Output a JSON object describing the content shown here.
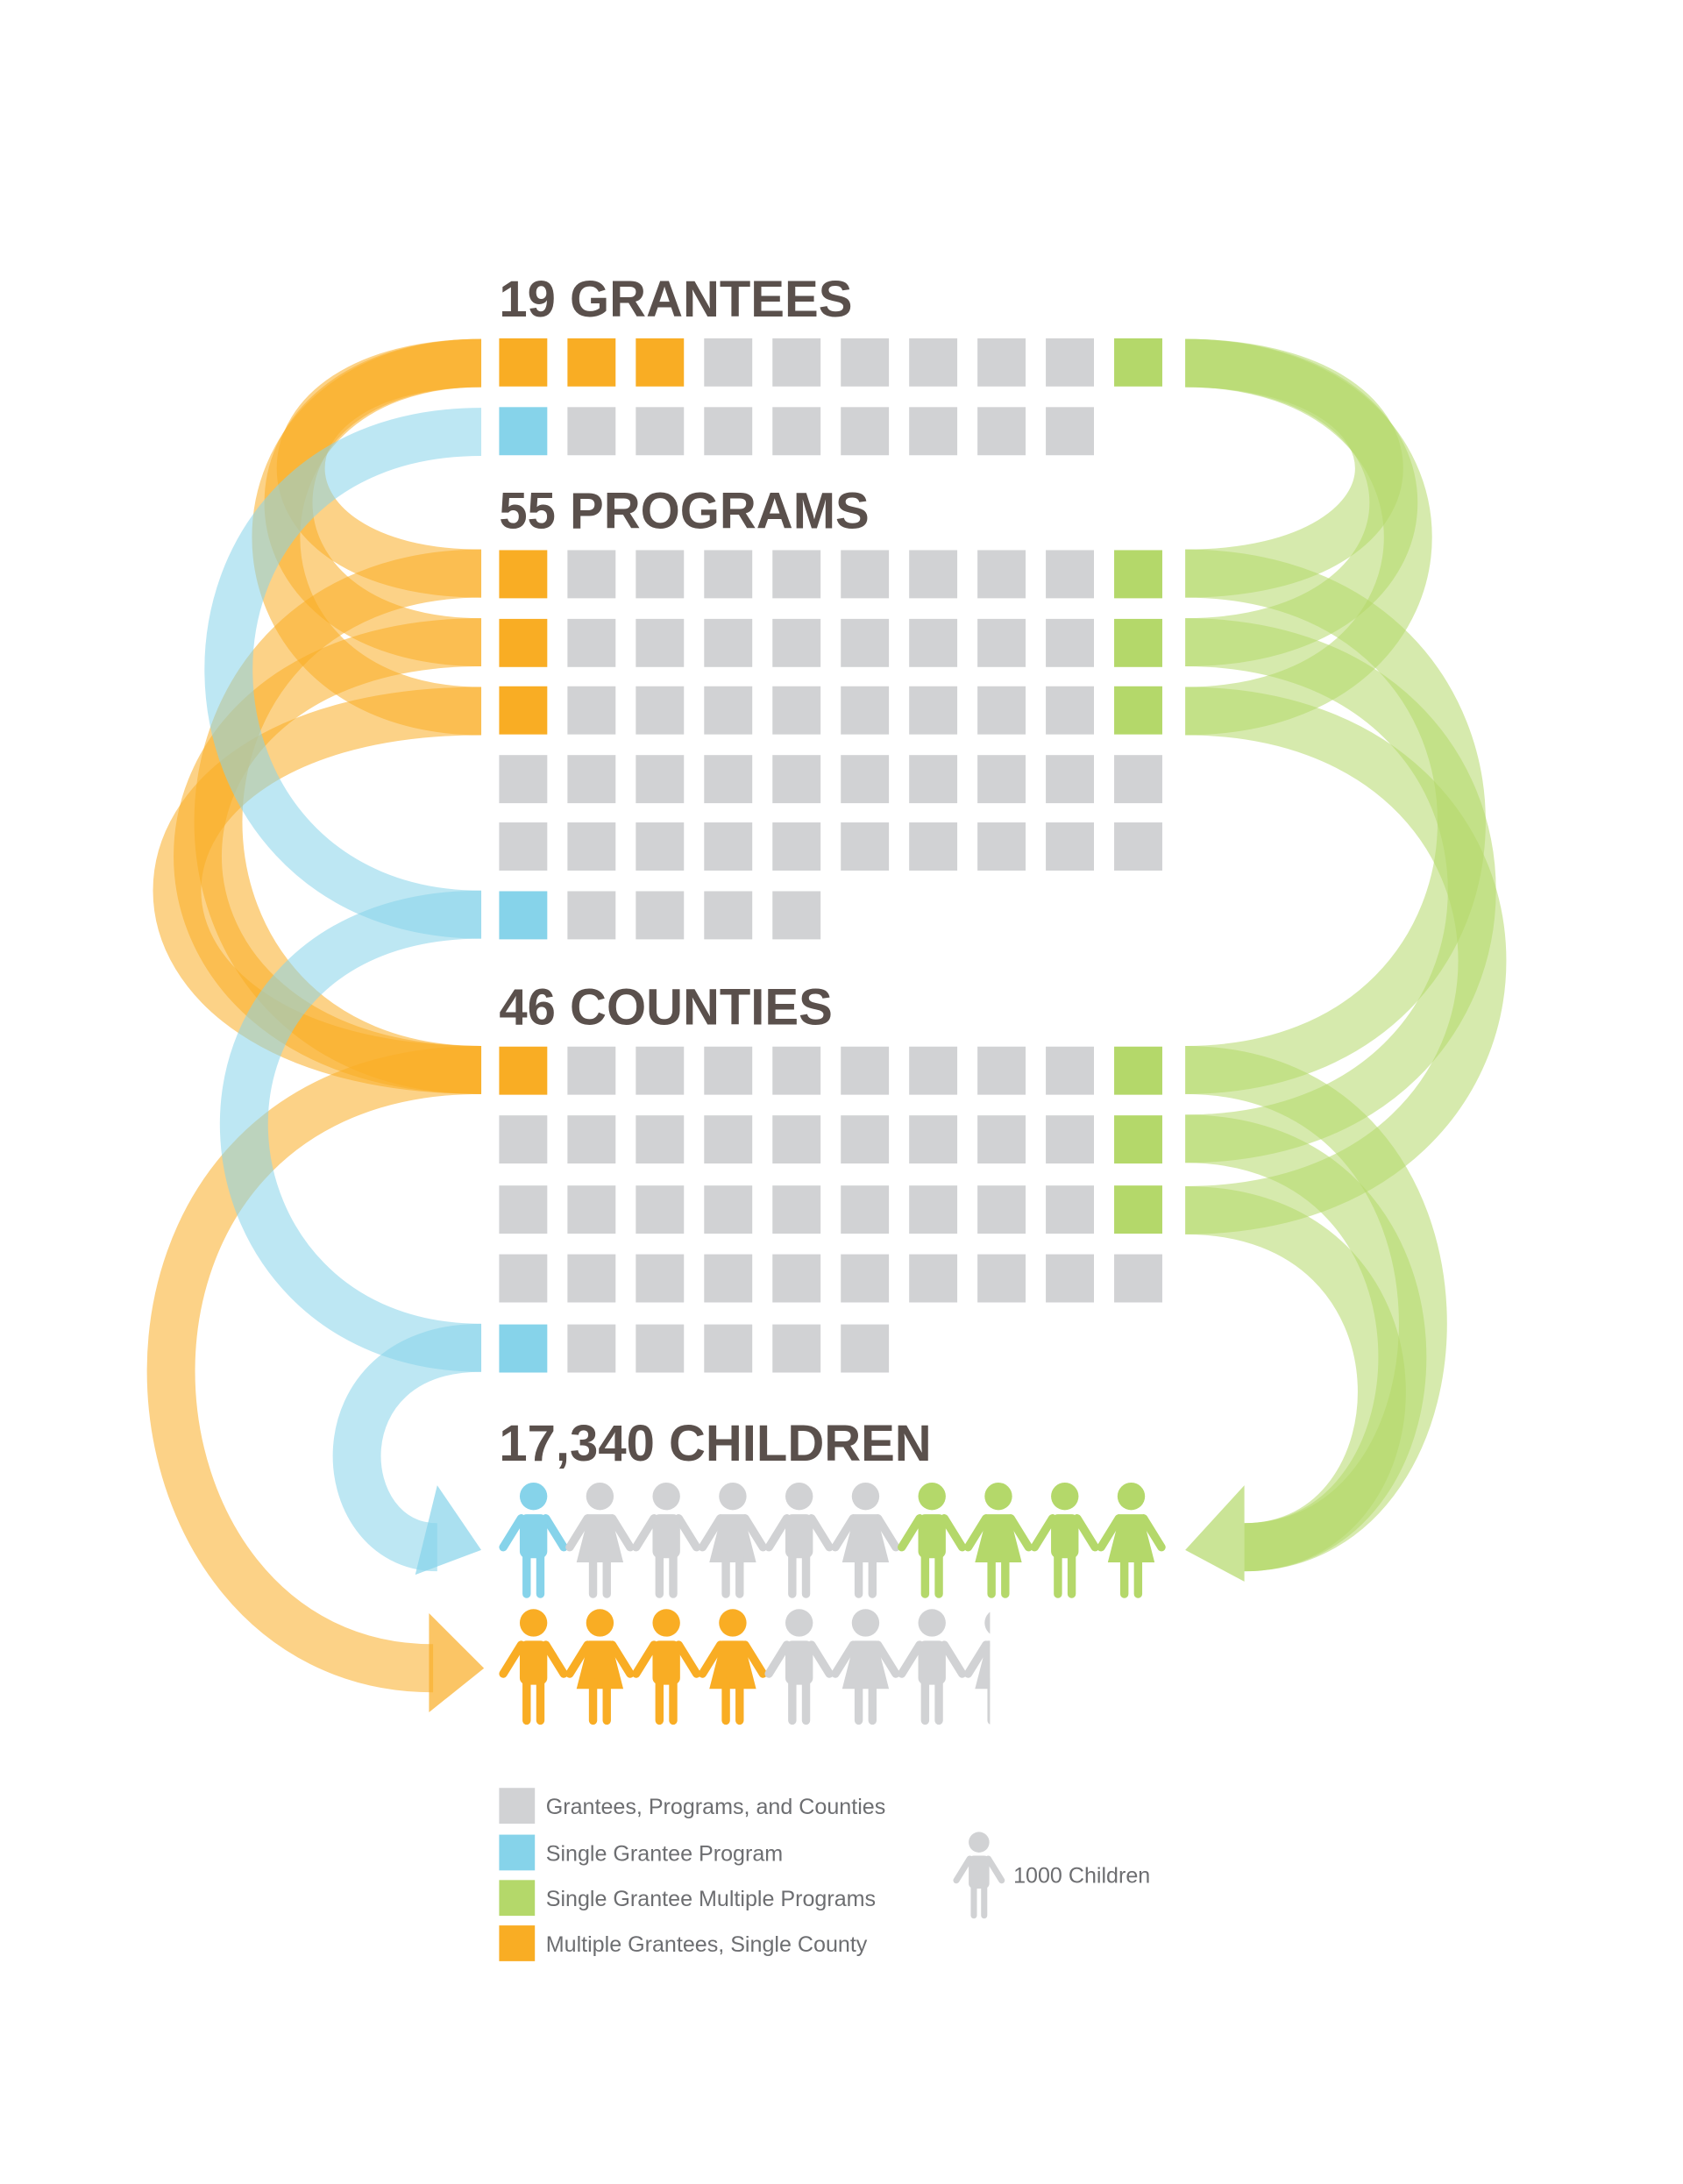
{
  "sections": [
    {
      "title": "19 GRANTEES"
    },
    {
      "title": "55 PROGRAMS"
    },
    {
      "title": "46 COUNTIES"
    },
    {
      "title": "17,340 CHILDREN"
    }
  ],
  "legend": {
    "items": [
      "Grantees, Programs, and Counties",
      "Single Grantee Program",
      "Single Grantee Multiple Programs",
      "Multiple Grantees, Single County"
    ],
    "unit": "1000 Children"
  }
}
